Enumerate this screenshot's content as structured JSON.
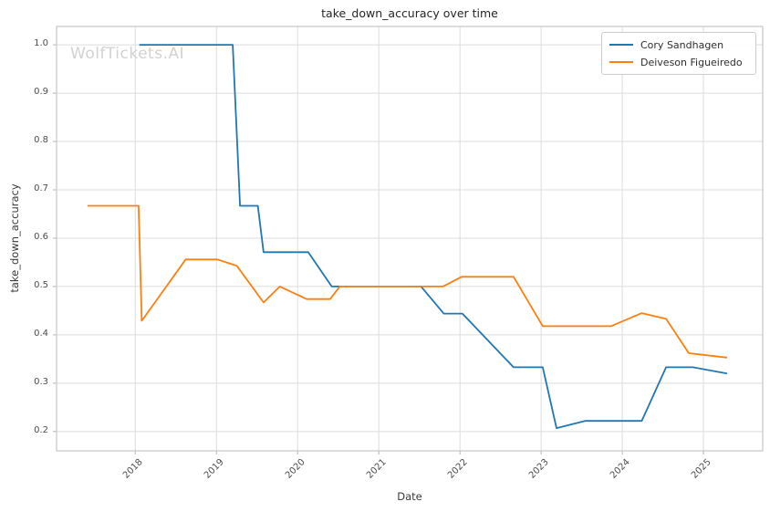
{
  "watermark": "WolfTickets.AI",
  "colors": {
    "background": "#ffffff",
    "grid": "#dcdcdc",
    "axis_border": "#c6c6c6",
    "tick_label": "#4d4d4d",
    "title_text": "#262626",
    "watermark_text": "#d2d2d2",
    "series_blue": "#1f77b4",
    "series_orange": "#ff7f0e"
  },
  "chart_data": {
    "type": "line",
    "title": "take_down_accuracy over time",
    "xlabel": "Date",
    "ylabel": "take_down_accuracy",
    "xlim": [
      2017.03,
      2025.73
    ],
    "ylim": [
      0.16,
      1.038
    ],
    "x_ticks": [
      2018,
      2019,
      2020,
      2021,
      2022,
      2023,
      2024,
      2025
    ],
    "y_ticks": [
      0.2,
      0.3,
      0.4,
      0.5,
      0.6,
      0.7,
      0.8,
      0.9,
      1.0
    ],
    "grid": true,
    "legend_position": "upper right",
    "series": [
      {
        "name": "Cory Sandhagen",
        "color": "#1f77b4",
        "points": [
          [
            2018.05,
            1.0
          ],
          [
            2019.2,
            1.0
          ],
          [
            2019.29,
            0.667
          ],
          [
            2019.51,
            0.667
          ],
          [
            2019.58,
            0.571
          ],
          [
            2020.13,
            0.571
          ],
          [
            2020.42,
            0.5
          ],
          [
            2021.52,
            0.5
          ],
          [
            2021.8,
            0.444
          ],
          [
            2022.03,
            0.444
          ],
          [
            2022.66,
            0.333
          ],
          [
            2023.02,
            0.333
          ],
          [
            2023.19,
            0.207
          ],
          [
            2023.54,
            0.222
          ],
          [
            2024.24,
            0.222
          ],
          [
            2024.54,
            0.333
          ],
          [
            2024.87,
            0.333
          ],
          [
            2025.29,
            0.32
          ]
        ]
      },
      {
        "name": "Deiveson Figueiredo",
        "color": "#ff7f0e",
        "points": [
          [
            2017.41,
            0.667
          ],
          [
            2018.04,
            0.667
          ],
          [
            2018.08,
            0.429
          ],
          [
            2018.62,
            0.556
          ],
          [
            2019.01,
            0.556
          ],
          [
            2019.25,
            0.543
          ],
          [
            2019.58,
            0.467
          ],
          [
            2019.78,
            0.5
          ],
          [
            2020.11,
            0.474
          ],
          [
            2020.4,
            0.474
          ],
          [
            2020.52,
            0.5
          ],
          [
            2021.79,
            0.5
          ],
          [
            2022.02,
            0.52
          ],
          [
            2022.66,
            0.52
          ],
          [
            2023.02,
            0.418
          ],
          [
            2023.86,
            0.418
          ],
          [
            2024.24,
            0.445
          ],
          [
            2024.54,
            0.433
          ],
          [
            2024.82,
            0.362
          ],
          [
            2025.29,
            0.353
          ]
        ]
      }
    ]
  }
}
